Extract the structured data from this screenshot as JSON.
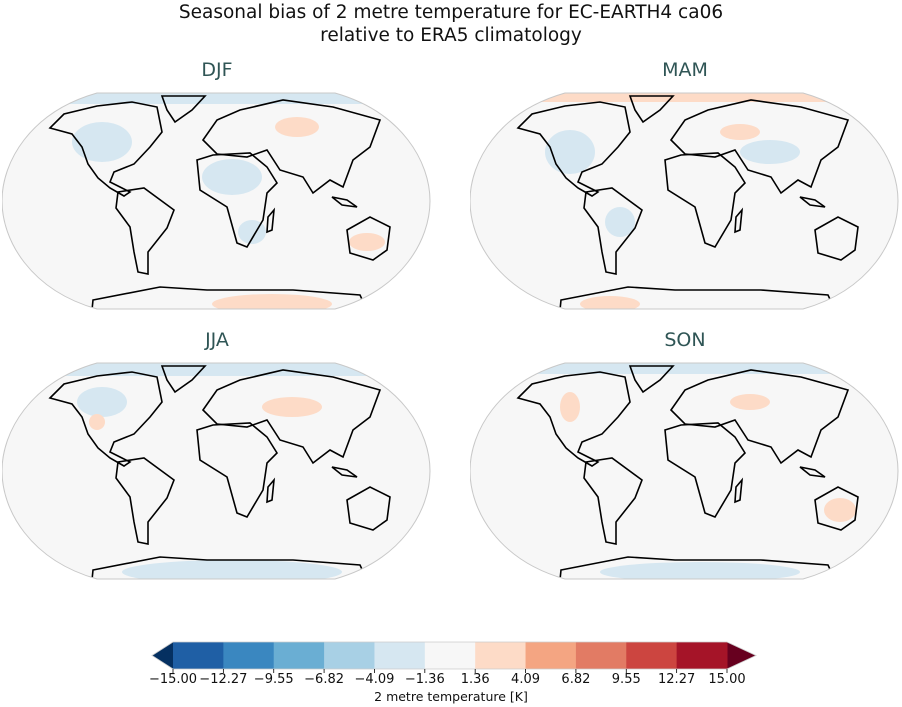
{
  "title_line1": "Seasonal bias of 2 metre temperature for EC-EARTH4 ca06",
  "title_line2": "relative to ERA5 climatology",
  "chart_data": {
    "type": "map",
    "projection": "robinson",
    "panels": [
      {
        "title": "DJF"
      },
      {
        "title": "MAM"
      },
      {
        "title": "JJA"
      },
      {
        "title": "SON"
      }
    ],
    "colorbar": {
      "label": "2 metre temperature [K]",
      "ticks": [
        "−15.00",
        "−12.27",
        "−9.55",
        "−6.82",
        "−4.09",
        "−1.36",
        "1.36",
        "4.09",
        "6.82",
        "9.55",
        "12.27",
        "15.00"
      ],
      "colors": [
        "#1f5fa5",
        "#3a87c0",
        "#6aaed3",
        "#a8d0e5",
        "#d6e7f1",
        "#f7f7f7",
        "#fddbc7",
        "#f4a582",
        "#e27b64",
        "#cc4540",
        "#a51428"
      ],
      "extend_low_color": "#053061",
      "extend_high_color": "#67001f",
      "range": [
        -15,
        15
      ]
    }
  }
}
